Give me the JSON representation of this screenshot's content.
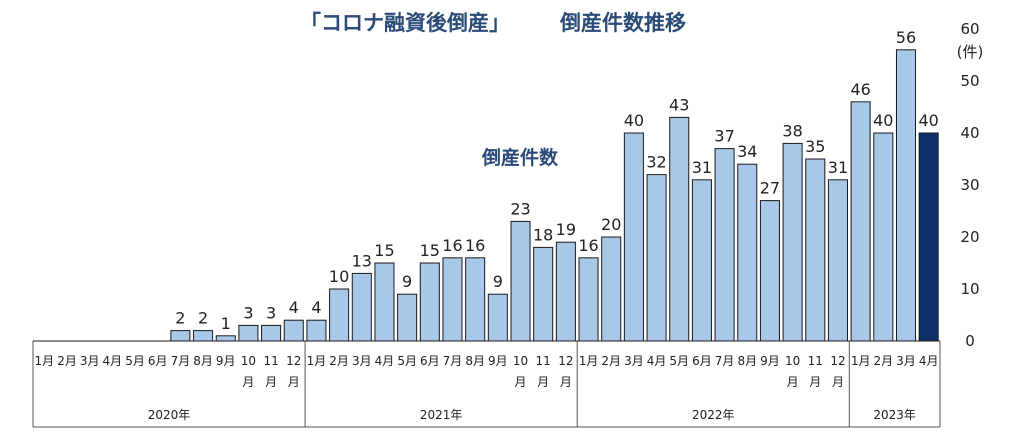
{
  "chart_data": {
    "type": "bar",
    "title_left": "「コロナ融資後倒産」",
    "title_right": "倒産件数推移",
    "series_label": "倒産件数",
    "y_unit": "(件)",
    "ylim": [
      0,
      60
    ],
    "yticks": [
      "0",
      "10",
      "20",
      "30",
      "40",
      "50",
      "60"
    ],
    "grid": false,
    "colors": {
      "bar": "#a8c8e8",
      "highlight": "#0f2f6b",
      "title": "#2a4a78",
      "stroke": "#1a1a1a"
    },
    "years": [
      {
        "label": "2020年",
        "count": 12
      },
      {
        "label": "2021年",
        "count": 12
      },
      {
        "label": "2022年",
        "count": 12
      },
      {
        "label": "2023年",
        "count": 4
      }
    ],
    "bars": [
      {
        "m": "1月",
        "v": 0,
        "l": ""
      },
      {
        "m": "2月",
        "v": 0,
        "l": ""
      },
      {
        "m": "3月",
        "v": 0,
        "l": ""
      },
      {
        "m": "4月",
        "v": 0,
        "l": ""
      },
      {
        "m": "5月",
        "v": 0,
        "l": ""
      },
      {
        "m": "6月",
        "v": 0,
        "l": ""
      },
      {
        "m": "7月",
        "v": 2,
        "l": "2"
      },
      {
        "m": "8月",
        "v": 2,
        "l": "2"
      },
      {
        "m": "9月",
        "v": 1,
        "l": "1"
      },
      {
        "m": "10月",
        "v": 3,
        "l": "3"
      },
      {
        "m": "11月",
        "v": 3,
        "l": "3"
      },
      {
        "m": "12月",
        "v": 4,
        "l": "4"
      },
      {
        "m": "1月",
        "v": 4,
        "l": "4"
      },
      {
        "m": "2月",
        "v": 10,
        "l": "10"
      },
      {
        "m": "3月",
        "v": 13,
        "l": "13"
      },
      {
        "m": "4月",
        "v": 15,
        "l": "15"
      },
      {
        "m": "5月",
        "v": 9,
        "l": "9"
      },
      {
        "m": "6月",
        "v": 15,
        "l": "15"
      },
      {
        "m": "7月",
        "v": 16,
        "l": "16"
      },
      {
        "m": "8月",
        "v": 16,
        "l": "16"
      },
      {
        "m": "9月",
        "v": 9,
        "l": "9"
      },
      {
        "m": "10月",
        "v": 23,
        "l": "23"
      },
      {
        "m": "11月",
        "v": 18,
        "l": "18"
      },
      {
        "m": "12月",
        "v": 19,
        "l": "19"
      },
      {
        "m": "1月",
        "v": 16,
        "l": "16"
      },
      {
        "m": "2月",
        "v": 20,
        "l": "20"
      },
      {
        "m": "3月",
        "v": 40,
        "l": "40"
      },
      {
        "m": "4月",
        "v": 32,
        "l": "32"
      },
      {
        "m": "5月",
        "v": 43,
        "l": "43"
      },
      {
        "m": "6月",
        "v": 31,
        "l": "31"
      },
      {
        "m": "7月",
        "v": 37,
        "l": "37"
      },
      {
        "m": "8月",
        "v": 34,
        "l": "34"
      },
      {
        "m": "9月",
        "v": 27,
        "l": "27"
      },
      {
        "m": "10月",
        "v": 38,
        "l": "38"
      },
      {
        "m": "11月",
        "v": 35,
        "l": "35"
      },
      {
        "m": "12月",
        "v": 31,
        "l": "31"
      },
      {
        "m": "1月",
        "v": 46,
        "l": "46"
      },
      {
        "m": "2月",
        "v": 40,
        "l": "40"
      },
      {
        "m": "3月",
        "v": 56,
        "l": "56"
      },
      {
        "m": "4月",
        "v": 40,
        "l": "40",
        "highlight": true
      }
    ]
  }
}
